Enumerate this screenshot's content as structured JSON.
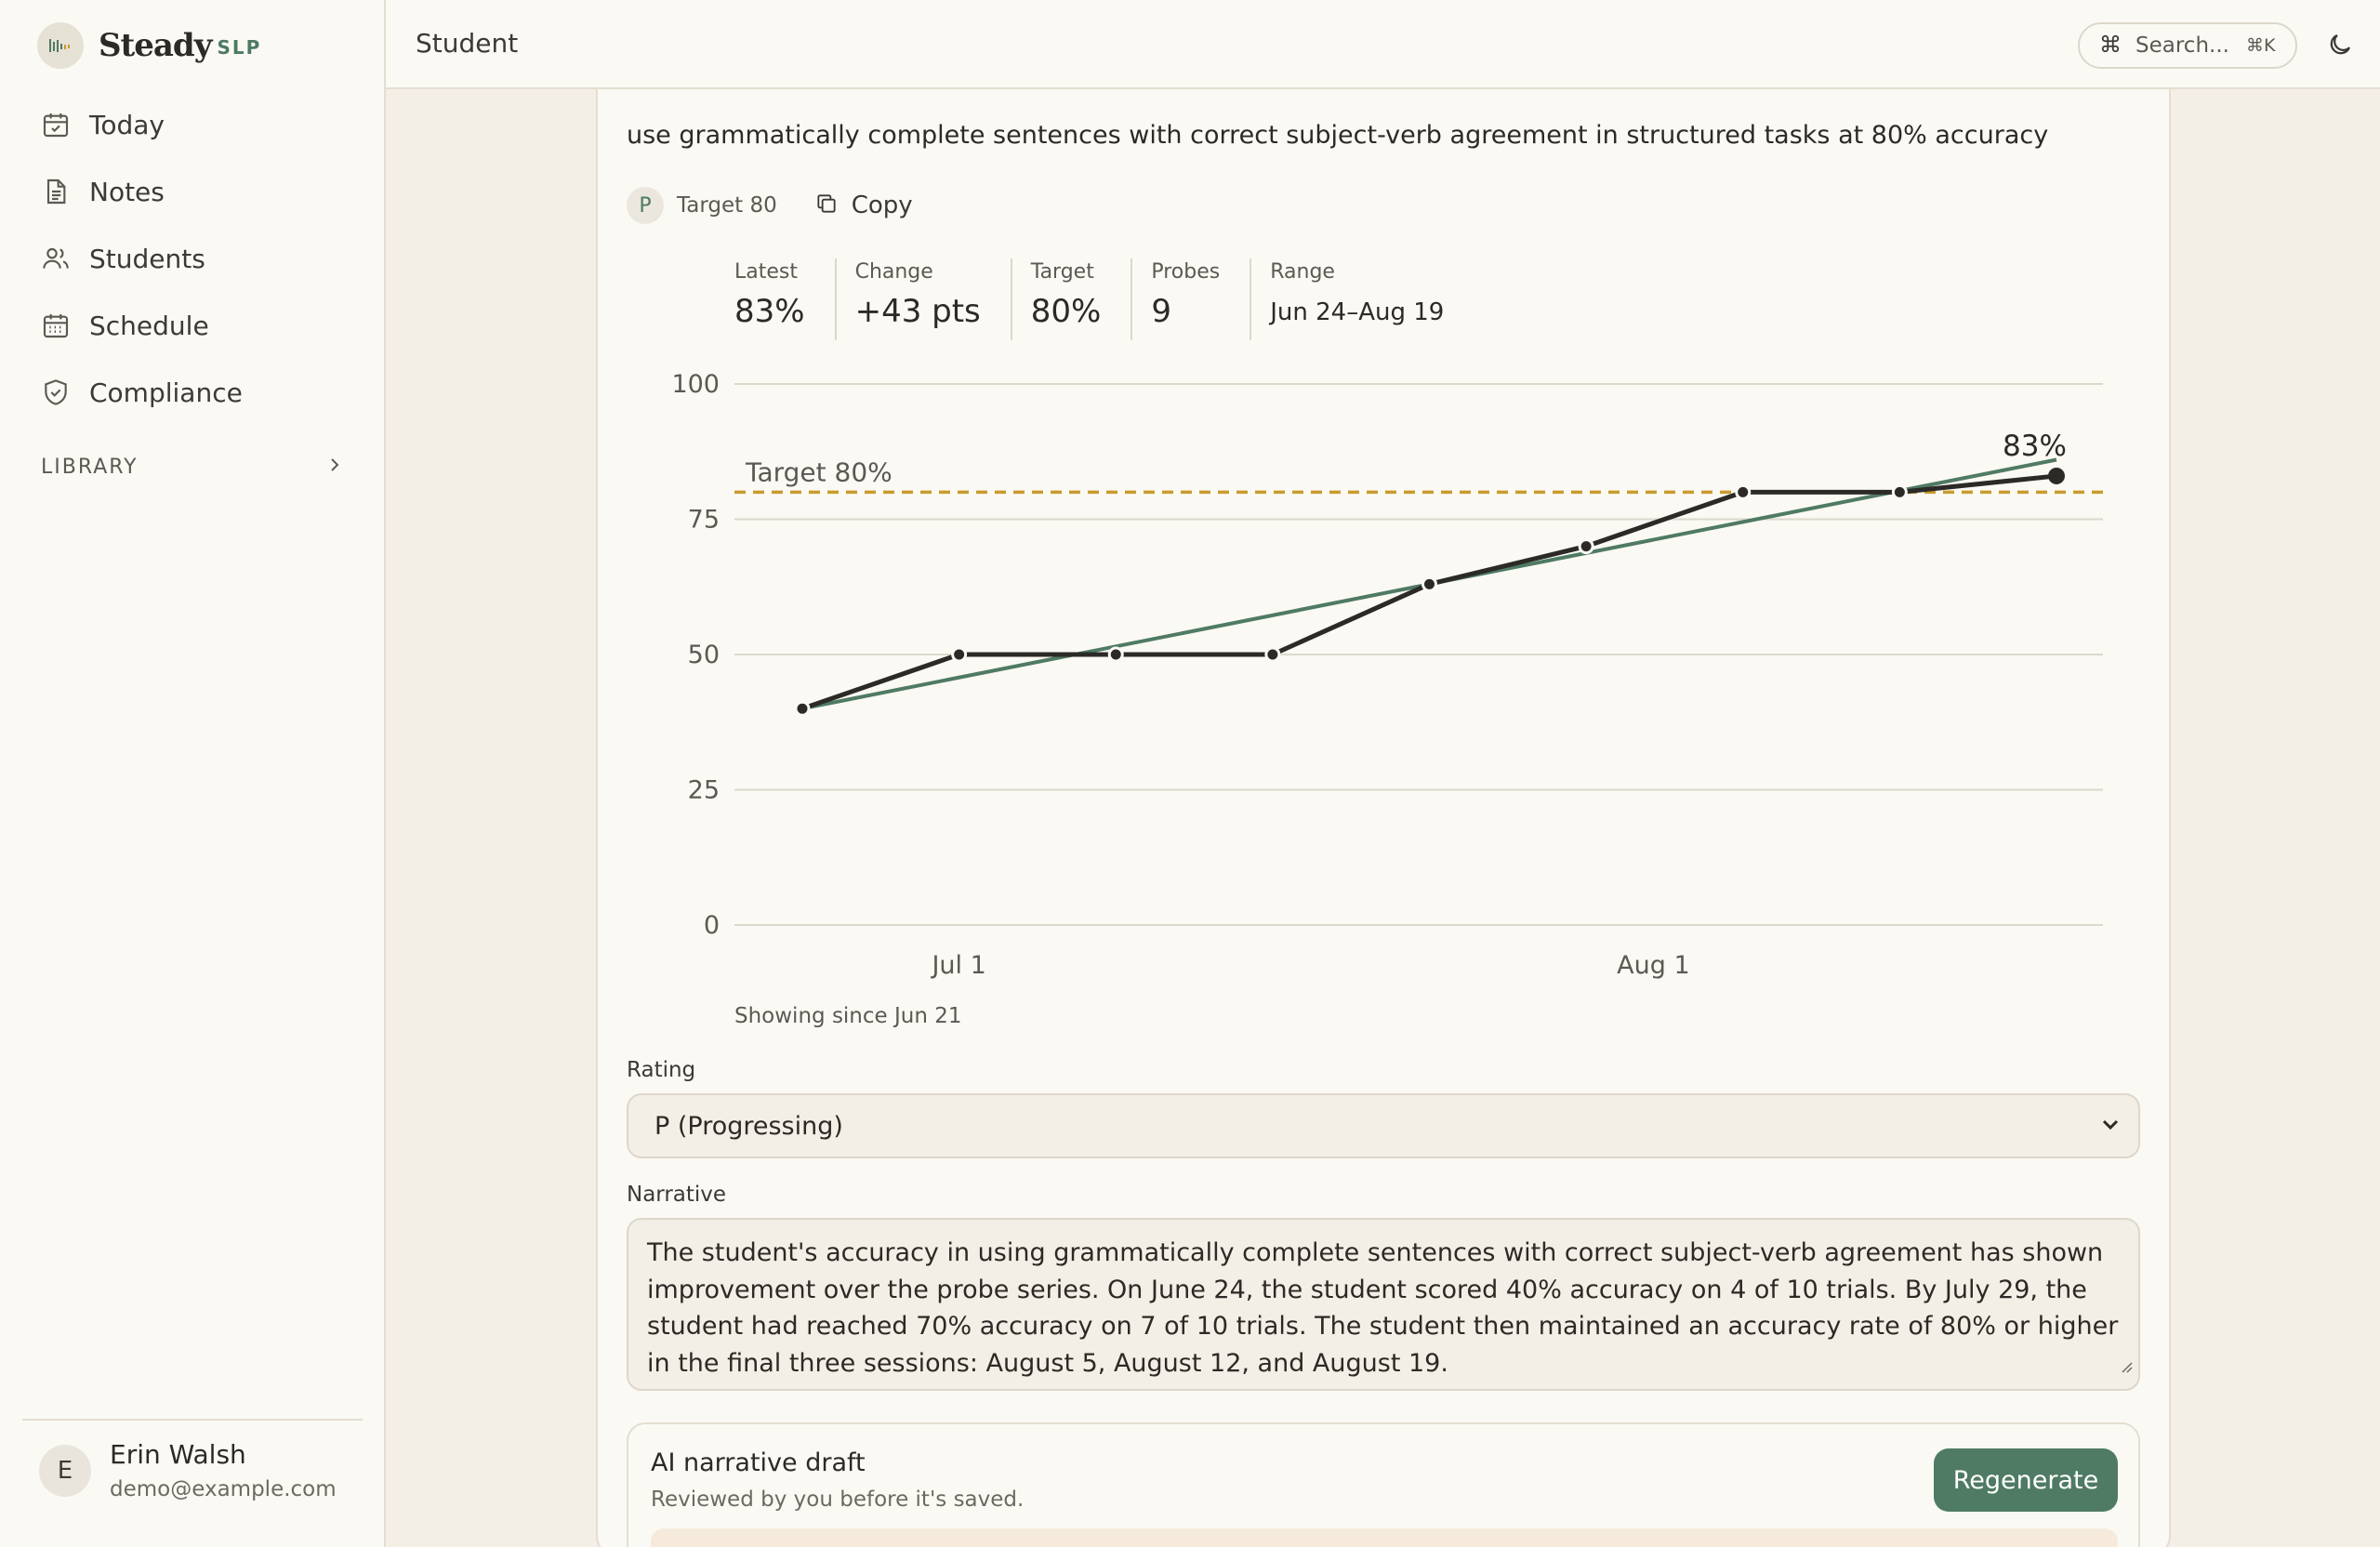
{
  "brand": {
    "name": "Steady",
    "suffix": "SLP"
  },
  "nav": [
    {
      "label": "Today",
      "icon": "calendar-check-icon"
    },
    {
      "label": "Notes",
      "icon": "document-icon"
    },
    {
      "label": "Students",
      "icon": "users-icon"
    },
    {
      "label": "Schedule",
      "icon": "calendar-grid-icon"
    },
    {
      "label": "Compliance",
      "icon": "shield-check-icon"
    }
  ],
  "library": {
    "label": "LIBRARY"
  },
  "user": {
    "initial": "E",
    "name": "Erin Walsh",
    "email": "demo@example.com"
  },
  "header": {
    "title": "Student"
  },
  "search": {
    "label": "Search...",
    "shortcut": "⌘K"
  },
  "goal": {
    "text": "use grammatically complete sentences with correct subject-verb agreement in structured tasks at 80% accuracy",
    "rating_letter": "P",
    "target_text": "Target 80",
    "copy_label": "Copy"
  },
  "stats": [
    {
      "label": "Latest",
      "value": "83%"
    },
    {
      "label": "Change",
      "value": "+43 pts"
    },
    {
      "label": "Target",
      "value": "80%"
    },
    {
      "label": "Probes",
      "value": "9"
    },
    {
      "label": "Range",
      "value": "Jun 24–Aug 19"
    }
  ],
  "chart_data": {
    "type": "line",
    "title": "",
    "xlabel": "",
    "ylabel": "",
    "ylim": [
      0,
      100
    ],
    "yticks": [
      0,
      25,
      50,
      75,
      100
    ],
    "xticks": [
      "Jul 1",
      "Aug 1"
    ],
    "x": [
      "Jun 24",
      "Jul 1",
      "Jul 8",
      "Jul 15",
      "Jul 22",
      "Jul 29",
      "Aug 5",
      "Aug 12",
      "Aug 19"
    ],
    "series": [
      {
        "values": [
          40,
          50,
          50,
          50,
          63,
          70,
          80,
          80,
          83
        ],
        "color": "#2b2a26"
      }
    ],
    "trend": {
      "start": 40,
      "end": 86,
      "color": "#4f7a63"
    },
    "target": {
      "value": 80,
      "label": "Target 80%",
      "color": "#c99a2e"
    },
    "end_label": "83%",
    "grid": true,
    "legend": "none"
  },
  "showing": "Showing since Jun 21",
  "rating": {
    "label": "Rating",
    "value": "P (Progressing)"
  },
  "narrative": {
    "label": "Narrative",
    "text": "The student's accuracy in using grammatically complete sentences with correct subject-verb agreement has shown improvement over the probe series. On June 24, the student scored 40% accuracy on 4 of 10 trials. By July 29, the student had reached 70% accuracy on 7 of 10 trials. The student then maintained an accuracy rate of 80% or higher in the final three sessions: August 5, August 12, and August 19."
  },
  "ai": {
    "title": "AI narrative draft",
    "subtitle": "Reviewed by you before it's saved.",
    "regenerate": "Regenerate"
  },
  "colors": {
    "accent": "#4f7a63",
    "target": "#c99a2e",
    "background": "#f3efe6",
    "surface": "#fbf9f4"
  }
}
